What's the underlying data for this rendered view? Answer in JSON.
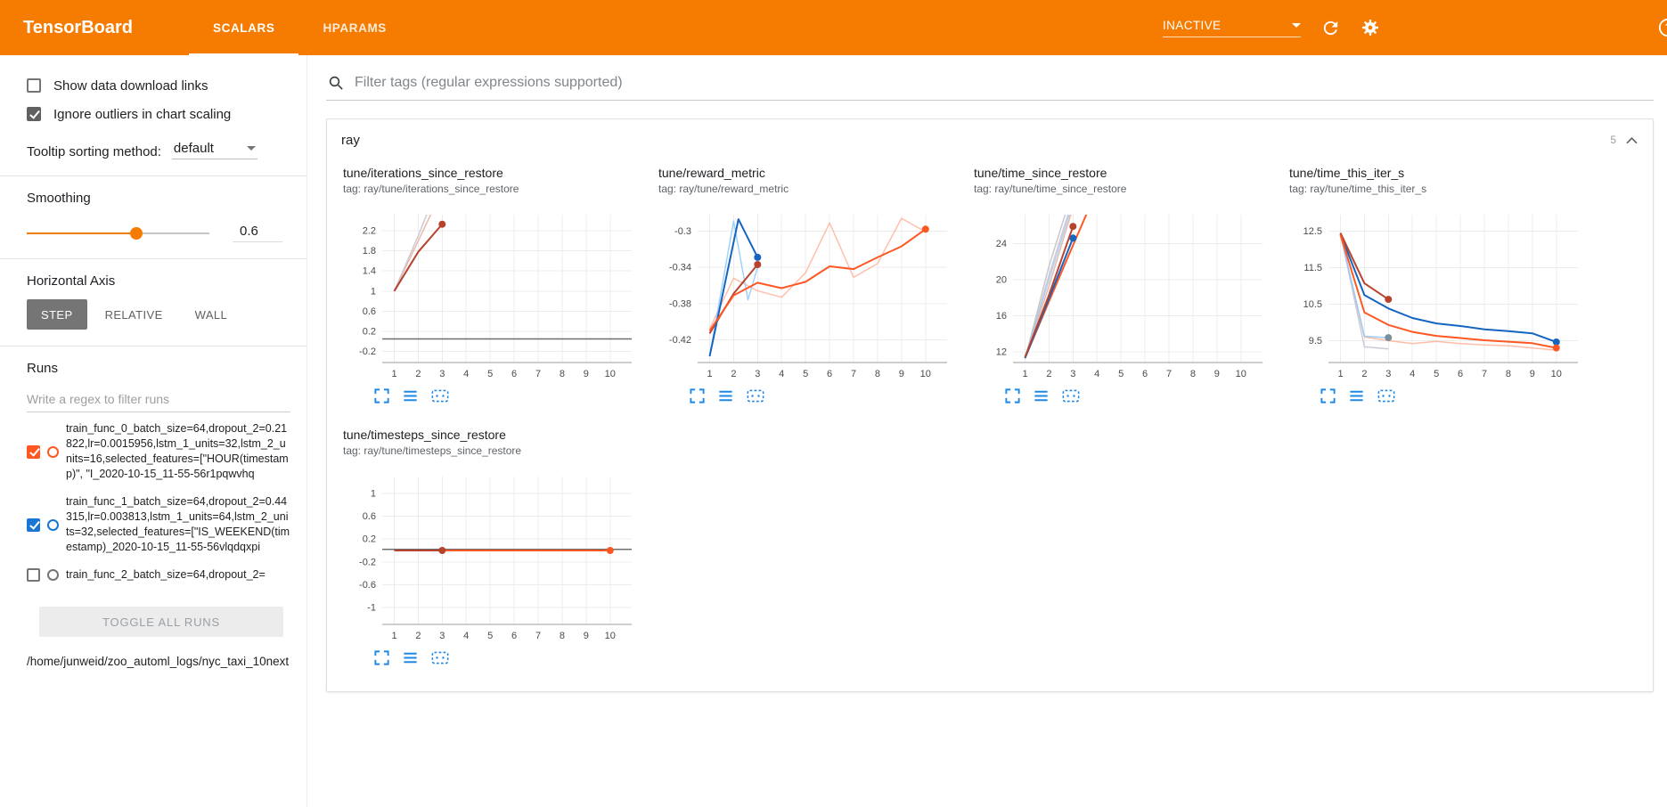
{
  "header": {
    "title": "TensorBoard",
    "tabs": [
      {
        "label": "SCALARS",
        "active": true
      },
      {
        "label": "HPARAMS",
        "active": false
      }
    ],
    "status": "INACTIVE"
  },
  "colors": {
    "accent": "#f57c00",
    "run_orange": "#ff5722",
    "run_blue": "#1976d2",
    "run_red": "#b7432d",
    "icon_blue": "#1e88e5"
  },
  "icons": {
    "header": [
      "chevron-down-icon",
      "refresh-icon",
      "settings-icon",
      "help-icon"
    ],
    "search": "search-icon",
    "card_collapse": "chevron-up-icon",
    "chart_toolbar": [
      "fullscreen-icon",
      "fit-domain-icon",
      "pin-icon"
    ]
  },
  "sidebar": {
    "checkboxes": [
      {
        "label": "Show data download links",
        "checked": false
      },
      {
        "label": "Ignore outliers in chart scaling",
        "checked": true
      }
    ],
    "tooltip_sorting": {
      "label": "Tooltip sorting method:",
      "value": "default"
    },
    "smoothing": {
      "label": "Smoothing",
      "value": "0.6",
      "percent": 60
    },
    "horizontal_axis": {
      "label": "Horizontal Axis",
      "options": [
        {
          "label": "STEP",
          "active": true
        },
        {
          "label": "RELATIVE",
          "active": false
        },
        {
          "label": "WALL",
          "active": false
        }
      ]
    },
    "runs": {
      "label": "Runs",
      "filter_placeholder": "Write a regex to filter runs",
      "items": [
        {
          "name": "train_func_0_batch_size=64,dropout_2=0.21822,lr=0.0015956,lstm_1_units=32,lstm_2_units=16,selected_features=[\"HOUR(timestamp)\", \"I_2020-10-15_11-55-56r1pqwvhq",
          "checked": true,
          "color": "#ff5722"
        },
        {
          "name": "train_func_1_batch_size=64,dropout_2=0.44315,lr=0.003813,lstm_1_units=64,lstm_2_units=32,selected_features=[\"IS_WEEKEND(timestamp)_2020-10-15_11-55-56vlqdqxpi",
          "checked": true,
          "color": "#1976d2"
        },
        {
          "name": "train_func_2_batch_size=64,dropout_2=",
          "checked": false,
          "color": "#757575"
        }
      ],
      "toggle_all_label": "TOGGLE ALL RUNS",
      "log_path": "/home/junweid/zoo_automl_logs/nyc_taxi_10next"
    }
  },
  "main": {
    "filter_placeholder": "Filter tags (regular expressions supported)",
    "card": {
      "title": "ray",
      "count": "5"
    },
    "charts": [
      {
        "title": "tune/iterations_since_restore",
        "tag": "tag: ray/tune/iterations_since_restore",
        "x_range": [
          0.5,
          10.9
        ],
        "y_range": [
          -0.42,
          2.52
        ],
        "x_ticks": [
          1,
          2,
          3,
          4,
          5,
          6,
          7,
          8,
          9,
          10
        ],
        "y_ticks": [
          -0.2,
          0.2,
          0.6,
          1,
          1.4,
          1.8,
          2.2
        ],
        "series": [
          {
            "color": "#e8a896",
            "opacity": 0.8,
            "width": 1.5,
            "points": [
              [
                1,
                1
              ],
              [
                2,
                2
              ],
              [
                3,
                3
              ]
            ]
          },
          {
            "color": "#c9c4d4",
            "opacity": 0.9,
            "width": 1.5,
            "points": [
              [
                1,
                1
              ],
              [
                2,
                2.1
              ],
              [
                3,
                3.3
              ]
            ]
          },
          {
            "color": "#b7432d",
            "opacity": 1,
            "width": 2,
            "points": [
              [
                1,
                1
              ],
              [
                2,
                1.78
              ],
              [
                3,
                2.33
              ]
            ],
            "dot": true
          },
          {
            "color": "#6f6f6f",
            "opacity": 1,
            "width": 1.5,
            "points": [
              [
                0.5,
                0.05
              ],
              [
                10.9,
                0.05
              ]
            ]
          }
        ]
      },
      {
        "title": "tune/reward_metric",
        "tag": "tag: ray/tune/reward_metric",
        "x_range": [
          0.5,
          10.9
        ],
        "y_range": [
          -0.445,
          -0.282
        ],
        "x_ticks": [
          1,
          2,
          3,
          4,
          5,
          6,
          7,
          8,
          9,
          10
        ],
        "y_ticks": [
          -0.42,
          -0.38,
          -0.34,
          -0.3
        ],
        "series": [
          {
            "color": "#ffab91",
            "opacity": 0.75,
            "width": 1.5,
            "points": [
              [
                1,
                -0.408
              ],
              [
                2,
                -0.352
              ],
              [
                3,
                -0.366
              ],
              [
                4,
                -0.373
              ],
              [
                5,
                -0.346
              ],
              [
                6,
                -0.291
              ],
              [
                7,
                -0.351
              ],
              [
                8,
                -0.336
              ],
              [
                9,
                -0.286
              ],
              [
                10,
                -0.301
              ]
            ]
          },
          {
            "color": "#90caf9",
            "opacity": 0.85,
            "width": 1.5,
            "points": [
              [
                1,
                -0.438
              ],
              [
                2,
                -0.289
              ],
              [
                2.6,
                -0.376
              ],
              [
                3,
                -0.34
              ]
            ]
          },
          {
            "color": "#b7432d",
            "opacity": 1,
            "width": 2,
            "points": [
              [
                1,
                -0.413
              ],
              [
                2,
                -0.369
              ],
              [
                3,
                -0.337
              ]
            ],
            "dot": true
          },
          {
            "color": "#1565c0",
            "opacity": 1,
            "width": 2,
            "points": [
              [
                1,
                -0.438
              ],
              [
                2.2,
                -0.287
              ],
              [
                3,
                -0.329
              ]
            ],
            "dot": true
          },
          {
            "color": "#ff5722",
            "opacity": 1,
            "width": 2,
            "points": [
              [
                1,
                -0.41
              ],
              [
                2,
                -0.371
              ],
              [
                3,
                -0.357
              ],
              [
                4,
                -0.363
              ],
              [
                5,
                -0.356
              ],
              [
                6,
                -0.339
              ],
              [
                7,
                -0.342
              ],
              [
                8,
                -0.329
              ],
              [
                9,
                -0.317
              ],
              [
                10,
                -0.298
              ]
            ],
            "dot": true
          }
        ]
      },
      {
        "title": "tune/time_since_restore",
        "tag": "tag: ray/tune/time_since_restore",
        "x_range": [
          0.5,
          10.9
        ],
        "y_range": [
          10.8,
          27.2
        ],
        "x_ticks": [
          1,
          2,
          3,
          4,
          5,
          6,
          7,
          8,
          9,
          10
        ],
        "y_ticks": [
          12,
          16,
          20,
          24
        ],
        "series": [
          {
            "color": "#c9c4d4",
            "opacity": 0.9,
            "width": 1.5,
            "points": [
              [
                1,
                11.3
              ],
              [
                2,
                20.5
              ],
              [
                3,
                29
              ]
            ]
          },
          {
            "color": "#c2c2c2",
            "opacity": 0.9,
            "width": 1.5,
            "points": [
              [
                1,
                11.2
              ],
              [
                2,
                21.5
              ],
              [
                3,
                30
              ]
            ]
          },
          {
            "color": "#e8a896",
            "opacity": 0.8,
            "width": 1.5,
            "points": [
              [
                1,
                11.3
              ],
              [
                2,
                19.3
              ],
              [
                3,
                28
              ]
            ]
          },
          {
            "color": "#9ec9ef",
            "opacity": 0.8,
            "width": 1.5,
            "points": [
              [
                1,
                11.3
              ],
              [
                2,
                20
              ],
              [
                3,
                28.5
              ]
            ]
          },
          {
            "color": "#ff5722",
            "opacity": 1,
            "width": 2,
            "points": [
              [
                1,
                11.3
              ],
              [
                2,
                17.6
              ],
              [
                3,
                23.8
              ],
              [
                3.6,
                27.5
              ]
            ]
          },
          {
            "color": "#1565c0",
            "opacity": 1,
            "width": 2,
            "points": [
              [
                1,
                11.3
              ],
              [
                2,
                17.9
              ],
              [
                3,
                24.6
              ]
            ],
            "dot": true
          },
          {
            "color": "#b7432d",
            "opacity": 1,
            "width": 2,
            "points": [
              [
                1,
                11.4
              ],
              [
                2,
                18.3
              ],
              [
                3,
                25.9
              ]
            ],
            "dot": true
          }
        ]
      },
      {
        "title": "tune/time_this_iter_s",
        "tag": "tag: ray/tune/time_this_iter_s",
        "x_range": [
          0.5,
          10.9
        ],
        "y_range": [
          8.9,
          12.95
        ],
        "x_ticks": [
          1,
          2,
          3,
          4,
          5,
          6,
          7,
          8,
          9,
          10
        ],
        "y_ticks": [
          9.5,
          10.5,
          11.5,
          12.5
        ],
        "series": [
          {
            "color": "#ffab91",
            "opacity": 0.8,
            "width": 1.5,
            "points": [
              [
                1,
                12.38
              ],
              [
                2,
                9.6
              ],
              [
                3,
                9.5
              ],
              [
                4,
                9.42
              ],
              [
                5,
                9.48
              ],
              [
                6,
                9.42
              ],
              [
                7,
                9.38
              ],
              [
                8,
                9.36
              ],
              [
                9,
                9.3
              ],
              [
                10,
                9.24
              ]
            ]
          },
          {
            "color": "#c9c4d4",
            "opacity": 0.9,
            "width": 1.5,
            "points": [
              [
                1,
                12.45
              ],
              [
                2,
                9.33
              ],
              [
                3,
                9.27
              ]
            ]
          },
          {
            "color": "#90caf9",
            "opacity": 0.9,
            "width": 1.5,
            "points": [
              [
                1,
                12.42
              ],
              [
                2,
                9.62
              ],
              [
                3,
                9.58
              ]
            ],
            "dot": true,
            "dot_color": "#78909c"
          },
          {
            "color": "#1565c0",
            "opacity": 1,
            "width": 2,
            "points": [
              [
                1,
                12.42
              ],
              [
                2,
                10.75
              ],
              [
                3,
                10.38
              ],
              [
                4,
                10.12
              ],
              [
                5,
                9.97
              ],
              [
                6,
                9.9
              ],
              [
                7,
                9.81
              ],
              [
                8,
                9.76
              ],
              [
                9,
                9.7
              ],
              [
                10,
                9.46
              ]
            ],
            "dot": true
          },
          {
            "color": "#b7432d",
            "opacity": 1,
            "width": 2,
            "points": [
              [
                1,
                12.45
              ],
              [
                2,
                11.07
              ],
              [
                3,
                10.63
              ]
            ],
            "dot": true
          },
          {
            "color": "#ff5722",
            "opacity": 1,
            "width": 2,
            "points": [
              [
                1,
                12.4
              ],
              [
                2,
                10.27
              ],
              [
                3,
                9.93
              ],
              [
                4,
                9.74
              ],
              [
                5,
                9.63
              ],
              [
                6,
                9.57
              ],
              [
                7,
                9.51
              ],
              [
                8,
                9.47
              ],
              [
                9,
                9.43
              ],
              [
                10,
                9.3
              ]
            ],
            "dot": true
          }
        ]
      },
      {
        "title": "tune/timesteps_since_restore",
        "tag": "tag: ray/tune/timesteps_since_restore",
        "x_range": [
          0.5,
          10.9
        ],
        "y_range": [
          -1.3,
          1.3
        ],
        "x_ticks": [
          1,
          2,
          3,
          4,
          5,
          6,
          7,
          8,
          9,
          10
        ],
        "y_ticks": [
          -1,
          -0.6,
          -0.2,
          0.2,
          0.6,
          1
        ],
        "series": [
          {
            "color": "#6f6f6f",
            "opacity": 1,
            "width": 1.5,
            "points": [
              [
                0.5,
                0.02
              ],
              [
                10.9,
                0.02
              ]
            ]
          },
          {
            "color": "#ff5722",
            "opacity": 1,
            "width": 2,
            "points": [
              [
                1,
                0
              ],
              [
                10,
                0
              ]
            ],
            "dot": true
          },
          {
            "color": "#b7432d",
            "opacity": 1,
            "width": 2,
            "points": [
              [
                1,
                0
              ],
              [
                3,
                0
              ]
            ],
            "dot": true
          }
        ]
      }
    ]
  }
}
